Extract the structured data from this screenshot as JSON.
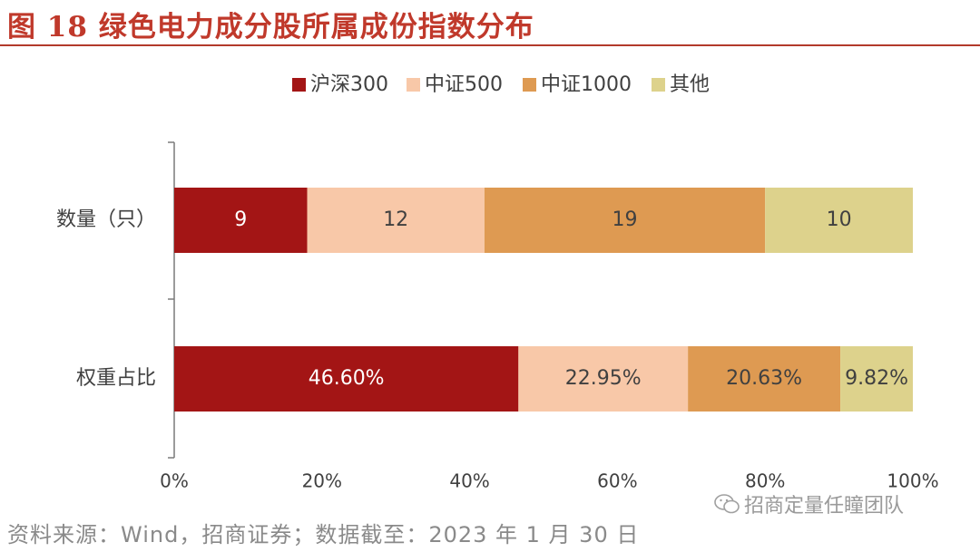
{
  "figure": {
    "title": "图 18 绿色电力成分股所属成份指数分布",
    "source": "资料来源：Wind，招商证券；数据截至：2023 年 1 月 30 日",
    "watermark": "招商定量任瞳团队"
  },
  "chart_data": {
    "type": "bar",
    "orientation": "horizontal",
    "stacked": true,
    "normalized": true,
    "title": "",
    "categories": [
      "数量（只）",
      "权重占比"
    ],
    "series": [
      {
        "name": "沪深300",
        "color": "#a31515",
        "values": [
          9,
          46.6
        ],
        "labels": [
          "9",
          "46.60%"
        ]
      },
      {
        "name": "中证500",
        "color": "#f8c8a8",
        "values": [
          12,
          22.95
        ],
        "labels": [
          "12",
          "22.95%"
        ]
      },
      {
        "name": "中证1000",
        "color": "#de9a52",
        "values": [
          19,
          20.63
        ],
        "labels": [
          "19",
          "20.63%"
        ]
      },
      {
        "name": "其他",
        "color": "#ddd28c",
        "values": [
          10,
          9.82
        ],
        "labels": [
          "10",
          "9.82%"
        ]
      }
    ],
    "label_colors": [
      "#ffffff",
      "#404040",
      "#404040",
      "#404040"
    ],
    "xlim": [
      0,
      100
    ],
    "xticks": [
      0,
      20,
      40,
      60,
      80,
      100
    ],
    "xtick_labels": [
      "0%",
      "20%",
      "40%",
      "60%",
      "80%",
      "100%"
    ],
    "legend_position": "top",
    "grid": false
  }
}
